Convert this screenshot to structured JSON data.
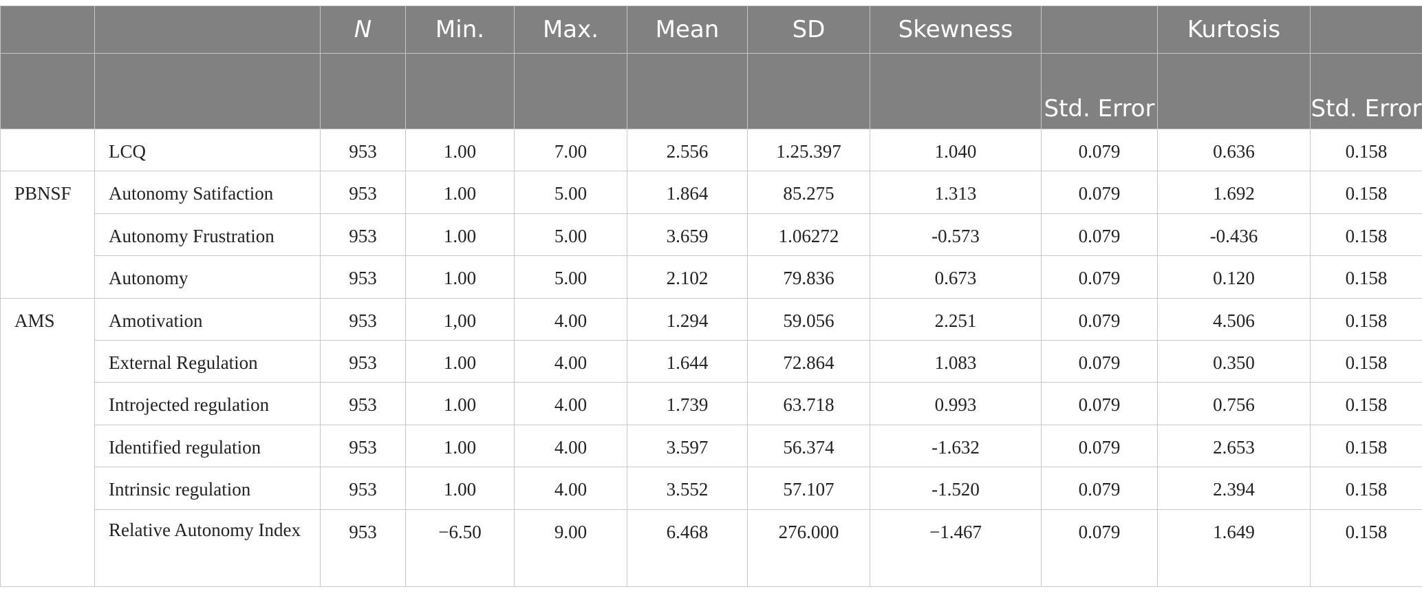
{
  "table": {
    "header_row1": [
      "",
      "",
      "N",
      "Min.",
      "Max.",
      "Mean",
      "SD",
      "Skewness",
      "",
      "Kurtosis",
      ""
    ],
    "header_row2": [
      "",
      "",
      "",
      "",
      "",
      "",
      "",
      "",
      "Std. Error",
      "",
      "Std. Error"
    ],
    "rows": [
      {
        "group": "",
        "variable": "LCQ",
        "n": "953",
        "min": "1.00",
        "max": "7.00",
        "mean": "2.556",
        "sd": "1.25.397",
        "skewness": "1.040",
        "skew_se": "0.079",
        "kurtosis": "0.636",
        "kurt_se": "0.158"
      },
      {
        "group": "PBNSF",
        "variable": "Autonomy Satifaction",
        "n": "953",
        "min": "1.00",
        "max": "5.00",
        "mean": "1.864",
        "sd": "85.275",
        "skewness": "1.313",
        "skew_se": "0.079",
        "kurtosis": "1.692",
        "kurt_se": "0.158"
      },
      {
        "group": "",
        "variable": "Autonomy Frustration",
        "n": "953",
        "min": "1.00",
        "max": "5.00",
        "mean": "3.659",
        "sd": "1.06272",
        "skewness": "-0.573",
        "skew_se": "0.079",
        "kurtosis": "-0.436",
        "kurt_se": "0.158"
      },
      {
        "group": "",
        "variable": "Autonomy",
        "n": "953",
        "min": "1.00",
        "max": "5.00",
        "mean": "2.102",
        "sd": "79.836",
        "skewness": "0.673",
        "skew_se": "0.079",
        "kurtosis": "0.120",
        "kurt_se": "0.158"
      },
      {
        "group": "AMS",
        "variable": "Amotivation",
        "n": "953",
        "min": "1,00",
        "max": "4.00",
        "mean": "1.294",
        "sd": "59.056",
        "skewness": "2.251",
        "skew_se": "0.079",
        "kurtosis": "4.506",
        "kurt_se": "0.158"
      },
      {
        "group": "",
        "variable": "External Regulation",
        "n": "953",
        "min": "1.00",
        "max": "4.00",
        "mean": "1.644",
        "sd": "72.864",
        "skewness": "1.083",
        "skew_se": "0.079",
        "kurtosis": "0.350",
        "kurt_se": "0.158"
      },
      {
        "group": "",
        "variable": "Introjected regulation",
        "n": "953",
        "min": "1.00",
        "max": "4.00",
        "mean": "1.739",
        "sd": "63.718",
        "skewness": "0.993",
        "skew_se": "0.079",
        "kurtosis": "0.756",
        "kurt_se": "0.158"
      },
      {
        "group": "",
        "variable": "Identified regulation",
        "n": "953",
        "min": "1.00",
        "max": "4.00",
        "mean": "3.597",
        "sd": "56.374",
        "skewness": "-1.632",
        "skew_se": "0.079",
        "kurtosis": "2.653",
        "kurt_se": "0.158"
      },
      {
        "group": "",
        "variable": "Intrinsic regulation",
        "n": "953",
        "min": "1.00",
        "max": "4.00",
        "mean": "3.552",
        "sd": "57.107",
        "skewness": "-1.520",
        "skew_se": "0.079",
        "kurtosis": "2.394",
        "kurt_se": "0.158"
      },
      {
        "group": "",
        "variable": "Relative Autonomy Index",
        "n": "953",
        "min": "−6.50",
        "max": "9.00",
        "mean": "6.468",
        "sd": "276.000",
        "skewness": "−1.467",
        "skew_se": "0.079",
        "kurtosis": "1.649",
        "kurt_se": "0.158"
      }
    ]
  },
  "colors": {
    "header_bg": "#808180",
    "header_text": "#ffffff",
    "border": "#c7c7c7",
    "body_text": "#222222"
  }
}
